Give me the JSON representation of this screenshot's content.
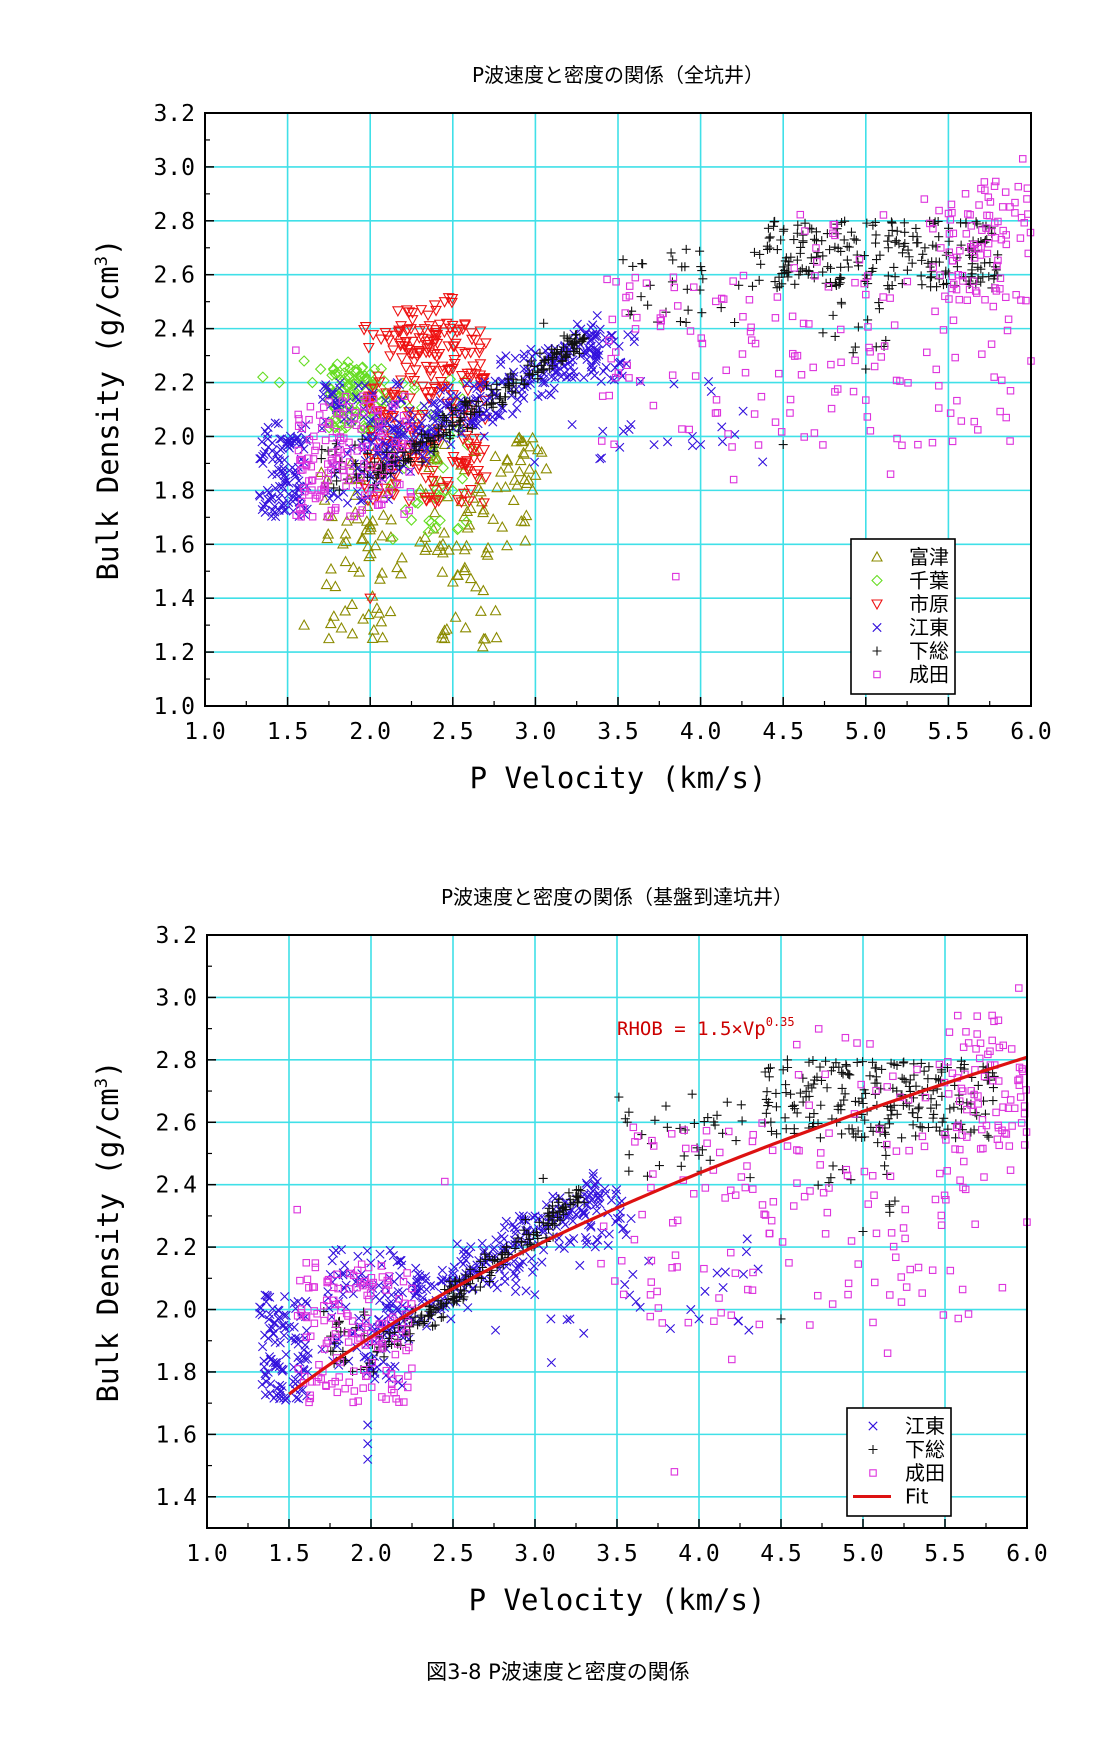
{
  "chart_data": [
    {
      "type": "scatter",
      "title": "P波速度と密度の関係（全坑井）",
      "xlabel": "P Velocity (km/s)",
      "ylabel": "Bulk Density (g/cm3)",
      "ylabel_main": "Bulk Density (g/cm",
      "ylabel_sup": "3",
      "ylabel_tail": ")",
      "xlim": [
        1.0,
        6.0
      ],
      "ylim": [
        1.0,
        3.2
      ],
      "xticks": [
        "1.0",
        "1.5",
        "2.0",
        "2.5",
        "3.0",
        "3.5",
        "4.0",
        "4.5",
        "5.0",
        "5.5",
        "6.0"
      ],
      "yticks": [
        "1.0",
        "1.2",
        "1.4",
        "1.6",
        "1.8",
        "2.0",
        "2.2",
        "2.4",
        "2.6",
        "2.8",
        "3.0",
        "3.2"
      ],
      "grid": true,
      "grid_color": "#40e0e8",
      "legend_position": "bottom-right",
      "series": [
        {
          "name": "富津",
          "marker": "triangle-up",
          "color": "#8b8b00",
          "seed": 11,
          "clusters": [
            {
              "n": 70,
              "x": [
                1.7,
                2.2
              ],
              "y": [
                1.25,
                1.95
              ]
            },
            {
              "n": 60,
              "x": [
                2.3,
                2.95
              ],
              "y": [
                1.55,
                2.0
              ]
            },
            {
              "n": 25,
              "x": [
                2.4,
                2.8
              ],
              "y": [
                1.2,
                1.6
              ]
            },
            {
              "n": 20,
              "x": [
                2.8,
                3.1
              ],
              "y": [
                1.8,
                2.0
              ]
            }
          ],
          "points": [
            [
              1.6,
              1.3
            ],
            [
              1.75,
              1.25
            ],
            [
              2.45,
              1.25
            ],
            [
              2.45,
              1.28
            ]
          ]
        },
        {
          "name": "千葉",
          "marker": "diamond",
          "color": "#66dd22",
          "seed": 22,
          "clusters": [
            {
              "n": 120,
              "x": [
                1.75,
                2.1
              ],
              "y": [
                2.02,
                2.28
              ]
            },
            {
              "n": 50,
              "x": [
                2.1,
                2.6
              ],
              "y": [
                1.6,
                2.25
              ]
            }
          ],
          "points": [
            [
              1.35,
              2.22
            ],
            [
              1.45,
              2.2
            ],
            [
              1.6,
              2.28
            ],
            [
              1.65,
              2.2
            ],
            [
              1.7,
              2.25
            ]
          ]
        },
        {
          "name": "市原",
          "marker": "triangle-down",
          "color": "#ee1111",
          "seed": 33,
          "clusters": [
            {
              "n": 260,
              "x": [
                1.95,
                2.7
              ],
              "y": [
                1.75,
                2.42
              ]
            },
            {
              "n": 30,
              "x": [
                2.1,
                2.5
              ],
              "y": [
                2.3,
                2.52
              ]
            }
          ],
          "points": [
            [
              2.45,
              2.5
            ],
            [
              2.35,
              2.45
            ],
            [
              2.0,
              1.4
            ]
          ]
        },
        {
          "name": "江東",
          "marker": "x",
          "color": "#3311dd",
          "seed": 44,
          "clusters": [
            {
              "n": 110,
              "x": [
                1.32,
                1.62
              ],
              "y": [
                1.7,
                2.05
              ]
            },
            {
              "n": 90,
              "x": [
                1.7,
                2.2
              ],
              "y": [
                1.75,
                2.2
              ]
            },
            {
              "n": 260,
              "trend": true,
              "x": [
                2.0,
                3.4
              ],
              "y0": 1.93,
              "slope": 0.31,
              "spread": 0.1
            },
            {
              "n": 30,
              "x": [
                3.3,
                3.6
              ],
              "y": [
                2.2,
                2.4
              ]
            },
            {
              "n": 30,
              "x": [
                2.7,
                4.4
              ],
              "y": [
                1.9,
                2.3
              ]
            }
          ],
          "points": [
            [
              4.0,
              1.97
            ],
            [
              3.95,
              2.0
            ],
            [
              3.8,
              1.98
            ],
            [
              3.4,
              1.92
            ]
          ]
        },
        {
          "name": "下総",
          "marker": "plus",
          "color": "#111111",
          "seed": 55,
          "clusters": [
            {
              "n": 180,
              "trend": true,
              "x": [
                2.0,
                3.3
              ],
              "y0": 1.85,
              "slope": 0.4,
              "spread": 0.05
            },
            {
              "n": 25,
              "x": [
                1.7,
                2.0
              ],
              "y": [
                1.8,
                2.0
              ]
            },
            {
              "n": 35,
              "x": [
                3.5,
                4.4
              ],
              "y": [
                2.4,
                2.7
              ]
            },
            {
              "n": 220,
              "x": [
                4.4,
                5.8
              ],
              "y": [
                2.55,
                2.8
              ]
            },
            {
              "n": 15,
              "x": [
                4.7,
                5.2
              ],
              "y": [
                2.3,
                2.55
              ]
            }
          ],
          "points": [
            [
              4.5,
              1.97
            ],
            [
              5.0,
              2.25
            ],
            [
              3.05,
              2.42
            ]
          ]
        },
        {
          "name": "成田",
          "marker": "square",
          "color": "#dd33dd",
          "seed": 66,
          "clusters": [
            {
              "n": 150,
              "x": [
                1.55,
                2.25
              ],
              "y": [
                1.7,
                2.15
              ]
            },
            {
              "n": 140,
              "x": [
                3.4,
                5.9
              ],
              "y": [
                1.95,
                2.6
              ]
            },
            {
              "n": 70,
              "x": [
                5.5,
                6.0
              ],
              "y": [
                2.5,
                2.95
              ]
            },
            {
              "n": 30,
              "x": [
                4.5,
                6.0
              ],
              "y": [
                2.55,
                2.9
              ]
            }
          ],
          "points": [
            [
              1.55,
              2.32
            ],
            [
              3.85,
              1.48
            ],
            [
              5.15,
              1.86
            ],
            [
              5.85,
              2.07
            ],
            [
              4.2,
              1.84
            ],
            [
              5.95,
              3.03
            ],
            [
              6.0,
              2.28
            ]
          ]
        }
      ]
    },
    {
      "type": "scatter",
      "title": "P波速度と密度の関係（基盤到達坑井）",
      "xlabel": "P Velocity (km/s)",
      "ylabel": "Bulk Density (g/cm3)",
      "ylabel_main": "Bulk Density (g/cm",
      "ylabel_sup": "3",
      "ylabel_tail": ")",
      "xlim": [
        1.0,
        6.0
      ],
      "ylim": [
        1.3,
        3.2
      ],
      "xticks": [
        "1.0",
        "1.5",
        "2.0",
        "2.5",
        "3.0",
        "3.5",
        "4.0",
        "4.5",
        "5.0",
        "5.5",
        "6.0"
      ],
      "yticks": [
        "1.4",
        "1.6",
        "1.8",
        "2.0",
        "2.2",
        "2.4",
        "2.6",
        "2.8",
        "3.0",
        "3.2"
      ],
      "grid": true,
      "grid_color": "#40e0e8",
      "legend_position": "bottom-right",
      "annotation": {
        "text": "RHOB = 1.5×Vp",
        "sup": "0.35",
        "x": 3.5,
        "y": 2.88
      },
      "fit": {
        "name": "Fit",
        "a": 1.5,
        "b": 0.35,
        "x_range": [
          1.5,
          6.0
        ],
        "color": "#dd1111"
      },
      "series": [
        {
          "name": "江東",
          "marker": "x",
          "color": "#3311dd",
          "seed": 144,
          "clusters": [
            {
              "n": 110,
              "x": [
                1.32,
                1.62
              ],
              "y": [
                1.7,
                2.05
              ]
            },
            {
              "n": 90,
              "x": [
                1.7,
                2.2
              ],
              "y": [
                1.75,
                2.2
              ]
            },
            {
              "n": 260,
              "trend": true,
              "x": [
                2.0,
                3.4
              ],
              "y0": 1.93,
              "slope": 0.31,
              "spread": 0.1
            },
            {
              "n": 30,
              "x": [
                3.3,
                3.6
              ],
              "y": [
                2.2,
                2.4
              ]
            },
            {
              "n": 30,
              "x": [
                2.7,
                4.4
              ],
              "y": [
                1.9,
                2.3
              ]
            }
          ],
          "points": [
            [
              1.98,
              1.63
            ],
            [
              1.98,
              1.57
            ],
            [
              1.98,
              1.52
            ],
            [
              4.0,
              1.97
            ],
            [
              3.95,
              2.0
            ],
            [
              3.1,
              1.83
            ]
          ]
        },
        {
          "name": "下総",
          "marker": "plus",
          "color": "#111111",
          "seed": 155,
          "clusters": [
            {
              "n": 180,
              "trend": true,
              "x": [
                2.0,
                3.3
              ],
              "y0": 1.85,
              "slope": 0.4,
              "spread": 0.05
            },
            {
              "n": 25,
              "x": [
                1.7,
                2.0
              ],
              "y": [
                1.8,
                2.0
              ]
            },
            {
              "n": 35,
              "x": [
                3.5,
                4.4
              ],
              "y": [
                2.4,
                2.7
              ]
            },
            {
              "n": 220,
              "x": [
                4.4,
                5.8
              ],
              "y": [
                2.55,
                2.8
              ]
            },
            {
              "n": 15,
              "x": [
                4.7,
                5.2
              ],
              "y": [
                2.3,
                2.55
              ]
            }
          ],
          "points": [
            [
              4.5,
              1.97
            ],
            [
              5.0,
              2.25
            ],
            [
              3.05,
              2.42
            ]
          ]
        },
        {
          "name": "成田",
          "marker": "square",
          "color": "#dd33dd",
          "seed": 166,
          "clusters": [
            {
              "n": 150,
              "x": [
                1.55,
                2.25
              ],
              "y": [
                1.7,
                2.15
              ]
            },
            {
              "n": 140,
              "x": [
                3.4,
                5.9
              ],
              "y": [
                1.95,
                2.6
              ]
            },
            {
              "n": 70,
              "x": [
                5.5,
                6.0
              ],
              "y": [
                2.5,
                2.95
              ]
            },
            {
              "n": 30,
              "x": [
                4.5,
                6.0
              ],
              "y": [
                2.55,
                2.9
              ]
            }
          ],
          "points": [
            [
              1.55,
              2.32
            ],
            [
              3.85,
              1.48
            ],
            [
              5.15,
              1.86
            ],
            [
              5.85,
              2.07
            ],
            [
              4.2,
              1.84
            ],
            [
              5.95,
              3.03
            ],
            [
              6.0,
              2.28
            ],
            [
              2.45,
              2.41
            ]
          ]
        }
      ]
    }
  ],
  "figure_caption": "図3-8 P波速度と密度の関係"
}
